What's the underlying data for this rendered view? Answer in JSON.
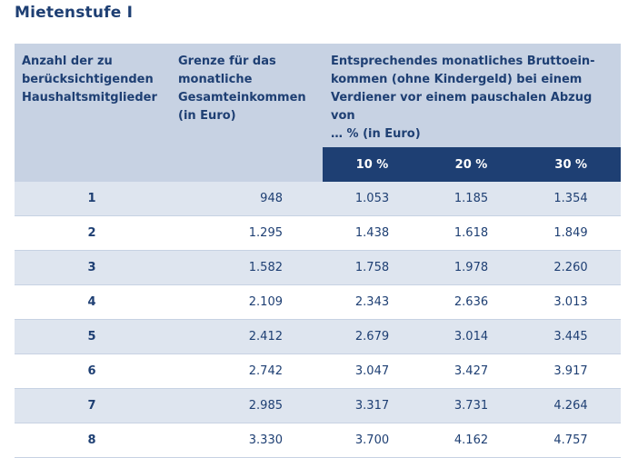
{
  "title": "Mietenstufe I",
  "header": {
    "col1": [
      "Anzahl der zu",
      "berücksichtigenden",
      "Haushaltsmitglieder"
    ],
    "col2": [
      "Grenze für das",
      "monatliche",
      "Gesamteinkommen",
      "(in Euro)"
    ],
    "col3": [
      "Entsprechendes monatliches Bruttoein-",
      "kommen (ohne Kindergeld) bei einem",
      "Verdiener vor einem pauschalen Abzug von",
      "… % (in Euro)"
    ],
    "percentages": [
      "10 %",
      "20 %",
      "30 %"
    ]
  },
  "rows": [
    {
      "members": "1",
      "limit": "948",
      "p10": "1.053",
      "p20": "1.185",
      "p30": "1.354"
    },
    {
      "members": "2",
      "limit": "1.295",
      "p10": "1.438",
      "p20": "1.618",
      "p30": "1.849"
    },
    {
      "members": "3",
      "limit": "1.582",
      "p10": "1.758",
      "p20": "1.978",
      "p30": "2.260"
    },
    {
      "members": "4",
      "limit": "2.109",
      "p10": "2.343",
      "p20": "2.636",
      "p30": "3.013"
    },
    {
      "members": "5",
      "limit": "2.412",
      "p10": "2.679",
      "p20": "3.014",
      "p30": "3.445"
    },
    {
      "members": "6",
      "limit": "2.742",
      "p10": "3.047",
      "p20": "3.427",
      "p30": "3.917"
    },
    {
      "members": "7",
      "limit": "2.985",
      "p10": "3.317",
      "p20": "3.731",
      "p30": "4.264"
    },
    {
      "members": "8",
      "limit": "3.330",
      "p10": "3.700",
      "p20": "4.162",
      "p30": "4.757"
    }
  ],
  "colors": {
    "navy": "#1e3f73",
    "header_bg": "#c7d2e3",
    "row_tint": "#dee5ef"
  }
}
